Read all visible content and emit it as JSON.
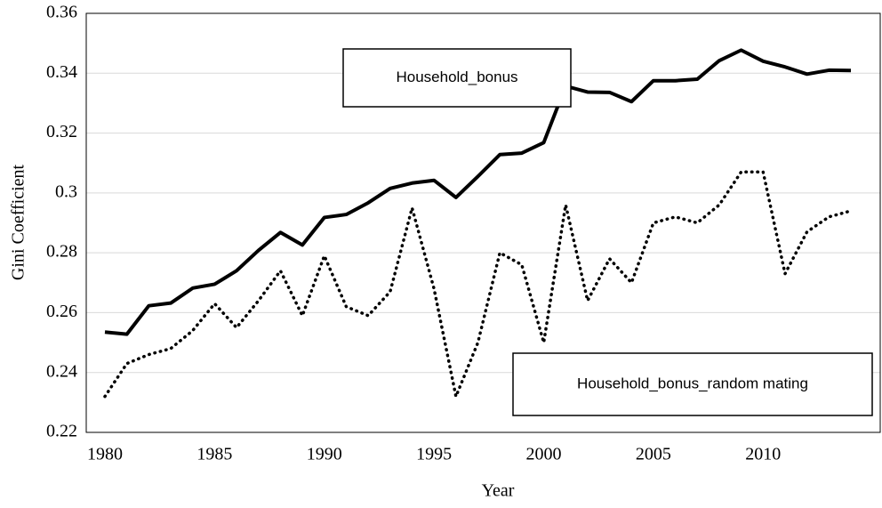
{
  "chart_data": {
    "type": "line",
    "y_label": "Gini Coefficient",
    "x_label": "Year",
    "categories": [
      1980,
      null,
      null,
      null,
      null,
      1985,
      null,
      null,
      null,
      null,
      1990,
      null,
      null,
      null,
      null,
      1995,
      null,
      null,
      null,
      null,
      2000,
      null,
      null,
      null,
      null,
      2005,
      null,
      null,
      null,
      null,
      2010,
      null,
      null,
      null,
      null
    ],
    "series": [
      {
        "name": "Household_bonus",
        "color": "#000000",
        "style": "solid",
        "values": [
          0.2535,
          0.2528,
          0.2623,
          0.2632,
          0.2682,
          0.2695,
          0.274,
          0.2808,
          0.2868,
          0.2826,
          0.2918,
          0.2928,
          0.2967,
          0.3015,
          0.3033,
          0.3042,
          0.2985,
          0.3055,
          0.3128,
          0.3133,
          0.3168,
          0.3357,
          0.3337,
          0.3336,
          0.3305,
          0.3375,
          0.3375,
          0.338,
          0.3442,
          0.3477,
          0.344,
          0.3421,
          0.3397,
          0.341,
          0.3409
        ]
      },
      {
        "name": "Household_bonus_random mating",
        "color": "#000000",
        "style": "dotted",
        "values": [
          0.232,
          0.243,
          0.246,
          0.248,
          0.254,
          0.263,
          0.255,
          0.264,
          0.274,
          0.259,
          0.279,
          0.262,
          0.259,
          0.267,
          0.295,
          0.268,
          0.232,
          0.25,
          0.28,
          0.276,
          0.25,
          0.296,
          0.264,
          0.278,
          0.27,
          0.29,
          0.292,
          0.29,
          0.296,
          0.307,
          0.307,
          0.273,
          0.287,
          0.292,
          0.294
        ]
      }
    ],
    "ylim": [
      0.22,
      0.36
    ],
    "yticks": [
      0.22,
      0.24,
      0.26,
      0.28,
      0.3,
      0.32,
      0.34,
      0.36
    ],
    "grid": true
  }
}
